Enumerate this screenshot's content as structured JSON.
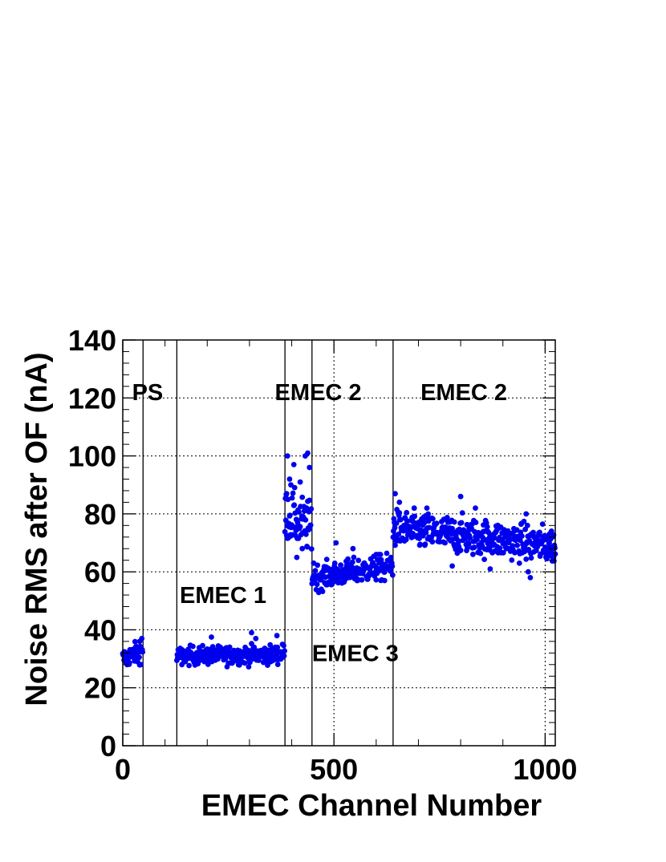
{
  "chart_data": {
    "type": "scatter",
    "title": "",
    "xlabel": "EMEC Channel Number",
    "ylabel": "Noise RMS after OF (nA)",
    "xlim": [
      0,
      1024
    ],
    "ylim": [
      0,
      140
    ],
    "x_ticks": [
      0,
      500,
      1000
    ],
    "x_tick_labels": [
      "0",
      "500",
      "1000"
    ],
    "y_ticks": [
      0,
      20,
      40,
      60,
      80,
      100,
      120,
      140
    ],
    "y_tick_labels": [
      "0",
      "20",
      "40",
      "60",
      "80",
      "100",
      "120",
      "140"
    ],
    "grid": true,
    "marker_color": "#0000ee",
    "region_boundaries": [
      48,
      128,
      384,
      448,
      640
    ],
    "region_labels": [
      {
        "text": "PS",
        "x": 22,
        "y": 122
      },
      {
        "text": "EMEC 2",
        "x": 360,
        "y": 122
      },
      {
        "text": "EMEC 2",
        "x": 705,
        "y": 122
      },
      {
        "text": "EMEC 1",
        "x": 135,
        "y": 52
      },
      {
        "text": "EMEC 3",
        "x": 448,
        "y": 32
      }
    ],
    "segments": [
      {
        "name": "PS",
        "x_start": 0,
        "x_end": 47,
        "level_start": 30,
        "level_end": 33,
        "spread": 1.8,
        "outliers": [
          [
            20,
            33
          ],
          [
            30,
            34
          ],
          [
            40,
            36
          ],
          [
            45,
            37
          ],
          [
            43,
            28
          ],
          [
            10,
            28
          ],
          [
            35,
            29
          ]
        ]
      },
      {
        "name": "EMEC 1",
        "x_start": 128,
        "x_end": 383,
        "level_start": 31,
        "level_end": 31.5,
        "spread": 1.6,
        "outliers": [
          [
            210,
            37.5
          ],
          [
            305,
            39
          ],
          [
            315,
            37
          ],
          [
            365,
            38
          ],
          [
            140,
            28
          ],
          [
            250,
            28.5
          ],
          [
            350,
            29
          ],
          [
            378,
            35
          ]
        ]
      },
      {
        "name": "EMEC 2",
        "x_start": 384,
        "x_end": 447,
        "level_start": 80,
        "level_end": 75,
        "spread": 4.5,
        "outliers": [
          [
            390,
            100
          ],
          [
            395,
            92
          ],
          [
            405,
            97
          ],
          [
            420,
            91
          ],
          [
            432,
            100
          ],
          [
            438,
            101
          ],
          [
            442,
            96
          ],
          [
            398,
            90
          ],
          [
            412,
            65
          ],
          [
            425,
            68
          ],
          [
            388,
            87
          ]
        ]
      },
      {
        "name": "EMEC 3",
        "x_start": 448,
        "x_end": 639,
        "level_start": 58,
        "level_end": 62,
        "spread": 2.2,
        "outliers": [
          [
            452,
            63
          ],
          [
            470,
            54
          ],
          [
            480,
            56
          ],
          [
            505,
            70
          ],
          [
            545,
            68
          ],
          [
            600,
            66
          ],
          [
            620,
            57
          ],
          [
            635,
            65
          ]
        ]
      },
      {
        "name": "EMEC 2 outer",
        "x_start": 640,
        "x_end": 1024,
        "level_start": 75,
        "level_end": 69,
        "spread": 3.2,
        "outliers": [
          [
            645,
            87
          ],
          [
            655,
            84
          ],
          [
            800,
            86
          ],
          [
            835,
            82
          ],
          [
            905,
            74
          ],
          [
            955,
            80
          ],
          [
            965,
            58
          ],
          [
            960,
            60
          ],
          [
            870,
            61
          ],
          [
            780,
            62
          ],
          [
            1010,
            70
          ],
          [
            1020,
            65
          ],
          [
            720,
            82
          ]
        ]
      }
    ]
  }
}
